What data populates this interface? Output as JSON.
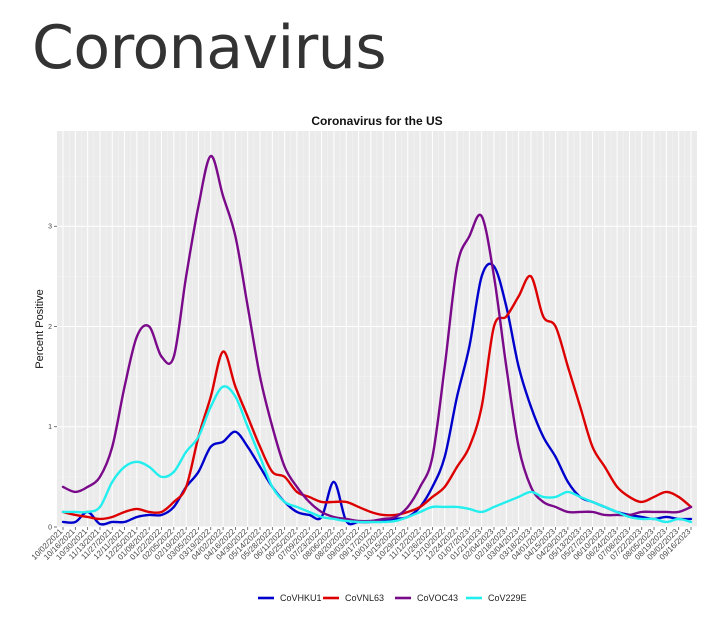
{
  "page": {
    "heading": "Coronavirus"
  },
  "chart_data": {
    "type": "line",
    "title": "Coronavirus for the US",
    "ylabel": "Percent Positive",
    "xlabel": "",
    "ylim": [
      0,
      3.95
    ],
    "yticks": [
      0,
      1,
      2,
      3
    ],
    "grid": true,
    "legend": "bottom",
    "x": [
      "10/02/2021",
      "10/16/2021",
      "10/30/2021",
      "11/13/2021",
      "11/27/2021",
      "12/11/2021",
      "12/25/2021",
      "01/08/2022",
      "01/22/2022",
      "02/05/2022",
      "02/19/2022",
      "03/05/2022",
      "03/19/2022",
      "04/02/2022",
      "04/16/2022",
      "04/30/2022",
      "05/14/2022",
      "05/28/2022",
      "06/11/2022",
      "06/25/2022",
      "07/09/2022",
      "07/23/2022",
      "08/06/2022",
      "08/20/2022",
      "09/03/2022",
      "09/17/2022",
      "10/01/2022",
      "10/15/2022",
      "10/29/2022",
      "11/12/2022",
      "11/26/2022",
      "12/10/2022",
      "12/24/2022",
      "01/07/2023",
      "01/21/2023",
      "02/04/2023",
      "02/18/2023",
      "03/04/2023",
      "03/18/2023",
      "04/01/2023",
      "04/15/2023",
      "04/29/2023",
      "05/13/2023",
      "05/27/2023",
      "06/10/2023",
      "06/24/2023",
      "07/08/2023",
      "07/22/2023",
      "08/05/2023",
      "08/19/2023",
      "09/02/2023",
      "09/16/2023"
    ],
    "series": [
      {
        "name": "CoVHKU1",
        "color": "#0000cc",
        "values": [
          0.05,
          0.05,
          0.15,
          0.03,
          0.05,
          0.05,
          0.1,
          0.12,
          0.12,
          0.2,
          0.4,
          0.55,
          0.8,
          0.85,
          0.95,
          0.8,
          0.6,
          0.4,
          0.25,
          0.15,
          0.12,
          0.1,
          0.45,
          0.06,
          0.05,
          0.05,
          0.06,
          0.08,
          0.1,
          0.2,
          0.4,
          0.7,
          1.3,
          1.8,
          2.5,
          2.6,
          2.2,
          1.6,
          1.2,
          0.9,
          0.7,
          0.45,
          0.3,
          0.25,
          0.2,
          0.15,
          0.12,
          0.1,
          0.08,
          0.1,
          0.08,
          0.08
        ]
      },
      {
        "name": "CoVNL63",
        "color": "#dd0000",
        "values": [
          0.15,
          0.12,
          0.1,
          0.08,
          0.1,
          0.15,
          0.18,
          0.15,
          0.15,
          0.25,
          0.4,
          0.9,
          1.3,
          1.75,
          1.4,
          1.1,
          0.8,
          0.55,
          0.5,
          0.35,
          0.3,
          0.25,
          0.25,
          0.25,
          0.2,
          0.15,
          0.12,
          0.12,
          0.15,
          0.2,
          0.3,
          0.4,
          0.6,
          0.8,
          1.2,
          2.0,
          2.1,
          2.3,
          2.5,
          2.1,
          2.0,
          1.6,
          1.2,
          0.8,
          0.6,
          0.4,
          0.3,
          0.25,
          0.3,
          0.35,
          0.3,
          0.2
        ]
      },
      {
        "name": "CoVOC43",
        "color": "#7a0a8a",
        "values": [
          0.4,
          0.35,
          0.4,
          0.5,
          0.8,
          1.4,
          1.9,
          2.0,
          1.7,
          1.7,
          2.5,
          3.2,
          3.7,
          3.3,
          2.9,
          2.2,
          1.5,
          1.0,
          0.6,
          0.4,
          0.25,
          0.15,
          0.1,
          0.08,
          0.06,
          0.06,
          0.08,
          0.1,
          0.2,
          0.4,
          0.7,
          1.6,
          2.6,
          2.9,
          3.1,
          2.5,
          1.6,
          0.8,
          0.4,
          0.25,
          0.2,
          0.15,
          0.15,
          0.15,
          0.12,
          0.12,
          0.12,
          0.15,
          0.15,
          0.15,
          0.15,
          0.2
        ]
      },
      {
        "name": "CoV229E",
        "color": "#22eeee",
        "values": [
          0.15,
          0.15,
          0.15,
          0.2,
          0.45,
          0.6,
          0.65,
          0.6,
          0.5,
          0.55,
          0.75,
          0.9,
          1.2,
          1.4,
          1.3,
          1.0,
          0.7,
          0.4,
          0.25,
          0.2,
          0.15,
          0.1,
          0.08,
          0.06,
          0.05,
          0.05,
          0.05,
          0.06,
          0.1,
          0.15,
          0.2,
          0.2,
          0.2,
          0.18,
          0.15,
          0.2,
          0.25,
          0.3,
          0.35,
          0.3,
          0.3,
          0.35,
          0.3,
          0.25,
          0.2,
          0.15,
          0.1,
          0.08,
          0.08,
          0.05,
          0.08,
          0.05
        ]
      }
    ]
  }
}
